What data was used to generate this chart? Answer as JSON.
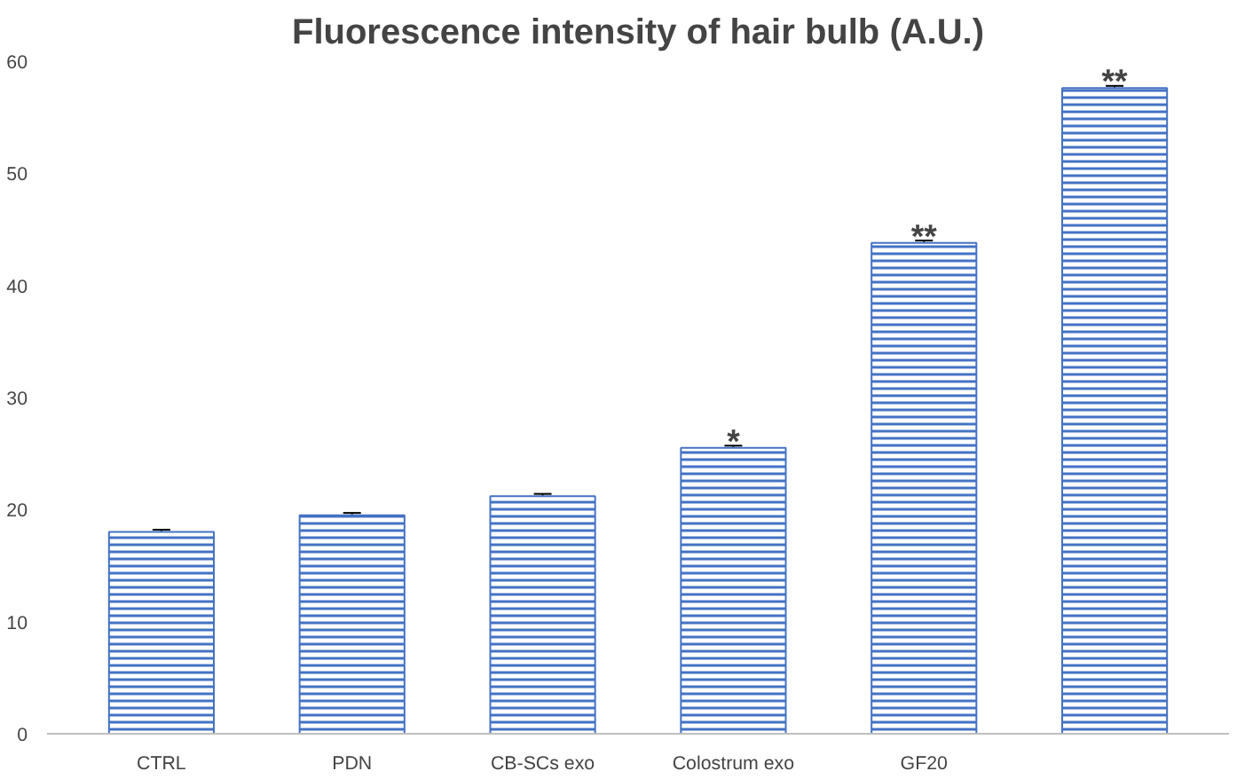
{
  "chart_data": {
    "type": "bar",
    "title": "Fluorescence intensity of hair bulb (A.U.)",
    "categories": [
      "CTRL",
      "PDN",
      "CB-SCs exo",
      "Colostrum exo",
      "GF20",
      null
    ],
    "values": [
      18,
      19.5,
      21.2,
      25.5,
      43.8,
      57.6
    ],
    "errors": [
      0.2,
      0.2,
      0.2,
      0.2,
      0.2,
      0.2
    ],
    "color": "#4472c4",
    "ylim": [
      0,
      60
    ],
    "yticks": [
      0,
      10,
      20,
      30,
      40,
      50,
      60
    ],
    "grid": false,
    "annotations": [
      {
        "text": "*",
        "x": "Colostrum exo",
        "y": 25.5
      },
      {
        "text": "**",
        "x": "GF20",
        "y": 43.8
      },
      {
        "text": "**",
        "y": 57.6
      }
    ]
  }
}
